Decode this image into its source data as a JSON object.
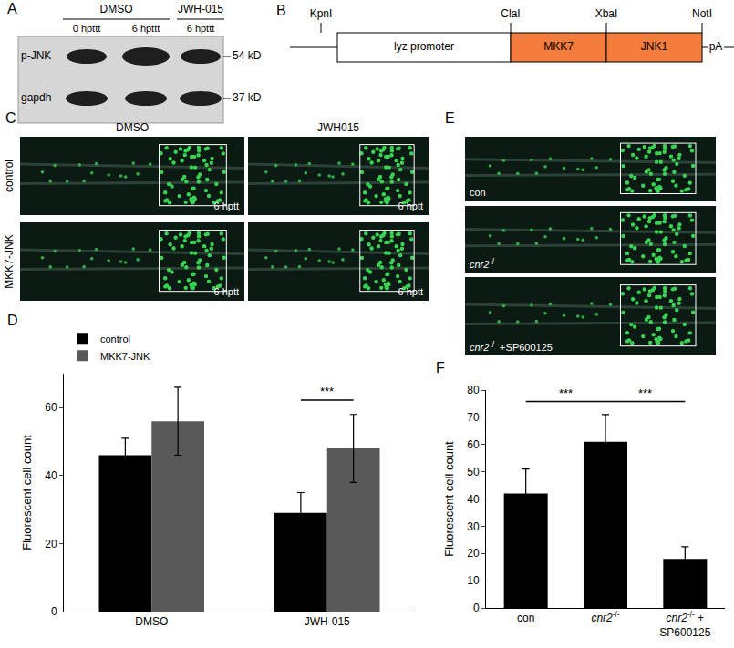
{
  "panels": {
    "A": {
      "letter": "A",
      "groups": [
        {
          "label": "DMSO",
          "lanes": [
            "0 hpttt",
            "6 hpttt"
          ]
        },
        {
          "label": "JWH-015",
          "lanes": [
            "6 hpttt"
          ]
        }
      ],
      "bands": [
        {
          "label": "p-JNK",
          "size": "54 kD"
        },
        {
          "label": "gapdh",
          "size": "37 kD"
        }
      ]
    },
    "B": {
      "letter": "B",
      "sites": [
        "KpnI",
        "ClaI",
        "XbaI",
        "NotI"
      ],
      "segments": [
        {
          "label": "lyz promoter",
          "color": "#ffffff"
        },
        {
          "label": "MKK7",
          "color": "#f47c3c"
        },
        {
          "label": "JNK1",
          "color": "#f47c3c"
        }
      ],
      "tail": "pA"
    },
    "C": {
      "letter": "C",
      "columns": [
        "DMSO",
        "JWH015"
      ],
      "rows": [
        "control",
        "MKK7-JNK"
      ],
      "stamp": "6 hptt"
    },
    "E": {
      "letter": "E",
      "images": [
        "con",
        "cnr2-/-",
        "cnr2-/- +SP600125"
      ]
    }
  },
  "chart_data": [
    {
      "panel": "D",
      "type": "bar",
      "categories": [
        "DMSO",
        "JWH-015"
      ],
      "series": [
        {
          "name": "control",
          "color": "#000000",
          "values": [
            46,
            29
          ],
          "errors": [
            5,
            6
          ]
        },
        {
          "name": "MKK7-JNK",
          "color": "#595959",
          "values": [
            56,
            48
          ],
          "errors": [
            10,
            10
          ]
        }
      ],
      "ylabel": "Fluorescent cell count",
      "ylim": [
        0,
        70
      ],
      "yticks": [
        0,
        20,
        40,
        60
      ],
      "grid": false,
      "legend": "top left",
      "annotations": [
        {
          "text": "***",
          "category": "JWH-015"
        }
      ]
    },
    {
      "panel": "F",
      "type": "bar",
      "categories": [
        "con",
        "cnr2-/-",
        "cnr2-/- + SP600125"
      ],
      "values": [
        42,
        61,
        18
      ],
      "errors": [
        9,
        10,
        4.5
      ],
      "color": "#000000",
      "ylabel": "Fluorescent cell count",
      "ylim": [
        0,
        80
      ],
      "yticks": [
        0,
        10,
        20,
        30,
        40,
        50,
        60,
        70,
        80
      ],
      "grid": false,
      "annotations": [
        {
          "text": "***",
          "between": [
            "con",
            "cnr2-/-"
          ]
        },
        {
          "text": "***",
          "between": [
            "cnr2-/-",
            "cnr2-/- + SP600125"
          ]
        }
      ]
    }
  ]
}
